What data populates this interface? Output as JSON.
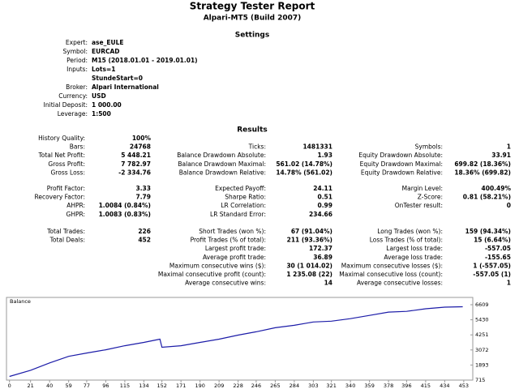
{
  "header": {
    "title": "Strategy Tester Report",
    "subtitle": "Alpari-MT5 (Build 2007)"
  },
  "settings": {
    "heading": "Settings",
    "rows": [
      {
        "label": "Expert:",
        "value": "ase_EULE"
      },
      {
        "label": "Symbol:",
        "value": "EURCAD"
      },
      {
        "label": "Period:",
        "value": "M15 (2018.01.01 - 2019.01.01)"
      },
      {
        "label": "Inputs:",
        "value": "Lots=1"
      },
      {
        "label": null,
        "value": "StundeStart=0"
      },
      {
        "label": "Broker:",
        "value": "Alpari International"
      },
      {
        "label": "Currency:",
        "value": "USD"
      },
      {
        "label": "Initial Deposit:",
        "value": "1 000.00"
      },
      {
        "label": "Leverage:",
        "value": "1:500"
      }
    ]
  },
  "results": {
    "heading": "Results",
    "groups": [
      [
        [
          {
            "label": "History Quality:",
            "value": "100%"
          },
          null,
          null
        ],
        [
          {
            "label": "Bars:",
            "value": "24768"
          },
          {
            "label": "Ticks:",
            "value": "1481331"
          },
          {
            "label": "Symbols:",
            "value": "1"
          }
        ],
        [
          {
            "label": "Total Net Profit:",
            "value": "5 448.21"
          },
          {
            "label": "Balance Drawdown Absolute:",
            "value": "1.93"
          },
          {
            "label": "Equity Drawdown Absolute:",
            "value": "33.91"
          }
        ],
        [
          {
            "label": "Gross Profit:",
            "value": "7 782.97"
          },
          {
            "label": "Balance Drawdown Maximal:",
            "value": "561.02 (14.78%)"
          },
          {
            "label": "Equity Drawdown Maximal:",
            "value": "699.82 (18.36%)"
          }
        ],
        [
          {
            "label": "Gross Loss:",
            "value": "-2 334.76"
          },
          {
            "label": "Balance Drawdown Relative:",
            "value": "14.78% (561.02)"
          },
          {
            "label": "Equity Drawdown Relative:",
            "value": "18.36% (699.82)"
          }
        ]
      ],
      [
        [
          {
            "label": "Profit Factor:",
            "value": "3.33"
          },
          {
            "label": "Expected Payoff:",
            "value": "24.11"
          },
          {
            "label": "Margin Level:",
            "value": "400.49%"
          }
        ],
        [
          {
            "label": "Recovery Factor:",
            "value": "7.79"
          },
          {
            "label": "Sharpe Ratio:",
            "value": "0.51"
          },
          {
            "label": "Z-Score:",
            "value": "0.81 (58.21%)"
          }
        ],
        [
          {
            "label": "AHPR:",
            "value": "1.0084 (0.84%)"
          },
          {
            "label": "LR Correlation:",
            "value": "0.99"
          },
          {
            "label": "OnTester result:",
            "value": "0"
          }
        ],
        [
          {
            "label": "GHPR:",
            "value": "1.0083 (0.83%)"
          },
          {
            "label": "LR Standard Error:",
            "value": "234.66"
          },
          null
        ]
      ],
      [
        [
          {
            "label": "Total Trades:",
            "value": "226"
          },
          {
            "label": "Short Trades (won %):",
            "value": "67 (91.04%)"
          },
          {
            "label": "Long Trades (won %):",
            "value": "159 (94.34%)"
          }
        ],
        [
          {
            "label": "Total Deals:",
            "value": "452"
          },
          {
            "label": "Profit Trades (% of total):",
            "value": "211 (93.36%)"
          },
          {
            "label": "Loss Trades (% of total):",
            "value": "15 (6.64%)"
          }
        ],
        [
          null,
          {
            "label": "Largest profit trade:",
            "value": "172.37"
          },
          {
            "label": "Largest loss trade:",
            "value": "-557.05"
          }
        ],
        [
          null,
          {
            "label": "Average profit trade:",
            "value": "36.89"
          },
          {
            "label": "Average loss trade:",
            "value": "-155.65"
          }
        ],
        [
          null,
          {
            "label": "Maximum consecutive wins ($):",
            "value": "30 (1 014.02)"
          },
          {
            "label": "Maximum consecutive losses ($):",
            "value": "1 (-557.05)"
          }
        ],
        [
          null,
          {
            "label": "Maximal consecutive profit (count):",
            "value": "1 235.08 (22)"
          },
          {
            "label": "Maximal consecutive loss (count):",
            "value": "-557.05 (1)"
          }
        ],
        [
          null,
          {
            "label": "Average consecutive wins:",
            "value": "14"
          },
          {
            "label": "Average consecutive losses:",
            "value": "1"
          }
        ]
      ]
    ]
  },
  "chart_data": {
    "type": "line",
    "title": "Balance",
    "x": [
      0,
      21,
      40,
      59,
      77,
      96,
      115,
      134,
      150,
      152,
      171,
      190,
      209,
      228,
      246,
      265,
      284,
      303,
      321,
      340,
      359,
      378,
      396,
      415,
      434,
      452
    ],
    "series": [
      {
        "color": "#1c1ca8",
        "values": [
          1000,
          1480,
          2060,
          2570,
          2830,
          3085,
          3400,
          3660,
          3915,
          3280,
          3400,
          3660,
          3915,
          4235,
          4490,
          4810,
          5000,
          5260,
          5320,
          5520,
          5770,
          6030,
          6090,
          6290,
          6420,
          6448
        ]
      }
    ],
    "xlim": [
      -3,
      462
    ],
    "ylim": [
      715,
      7180
    ],
    "xticks": [
      0,
      21,
      40,
      59,
      77,
      96,
      115,
      134,
      152,
      171,
      190,
      209,
      228,
      246,
      265,
      284,
      303,
      321,
      340,
      359,
      378,
      396,
      415,
      434,
      453
    ],
    "yticks": [
      715,
      1893,
      3072,
      4251,
      5430,
      6609
    ]
  }
}
